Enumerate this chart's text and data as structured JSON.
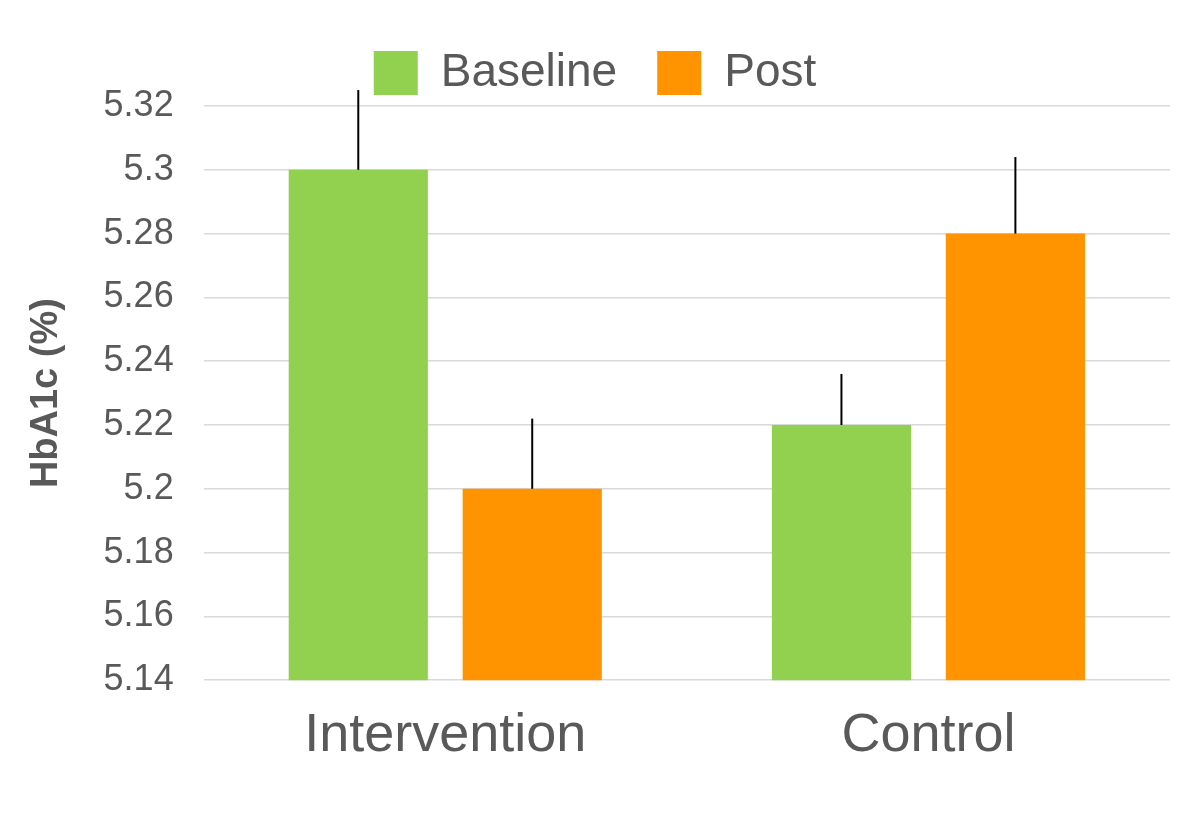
{
  "chart_data": {
    "type": "bar",
    "ylabel": "HbA1c (%)",
    "categories": [
      "Intervention",
      "Control"
    ],
    "series": [
      {
        "name": "Baseline",
        "color": "#92d050",
        "values": [
          5.3,
          5.22
        ],
        "errors": [
          [
            5.3,
            5.325
          ],
          [
            5.22,
            5.236
          ]
        ]
      },
      {
        "name": "Post",
        "color": "#ff9300",
        "values": [
          5.2,
          5.28
        ],
        "errors": [
          [
            5.2,
            5.222
          ],
          [
            5.28,
            5.304
          ]
        ]
      }
    ],
    "ylim": [
      5.14,
      5.32
    ],
    "yticks": [
      5.14,
      5.16,
      5.18,
      5.2,
      5.22,
      5.24,
      5.26,
      5.28,
      5.3,
      5.32
    ],
    "grid": "y",
    "legend": "top"
  }
}
